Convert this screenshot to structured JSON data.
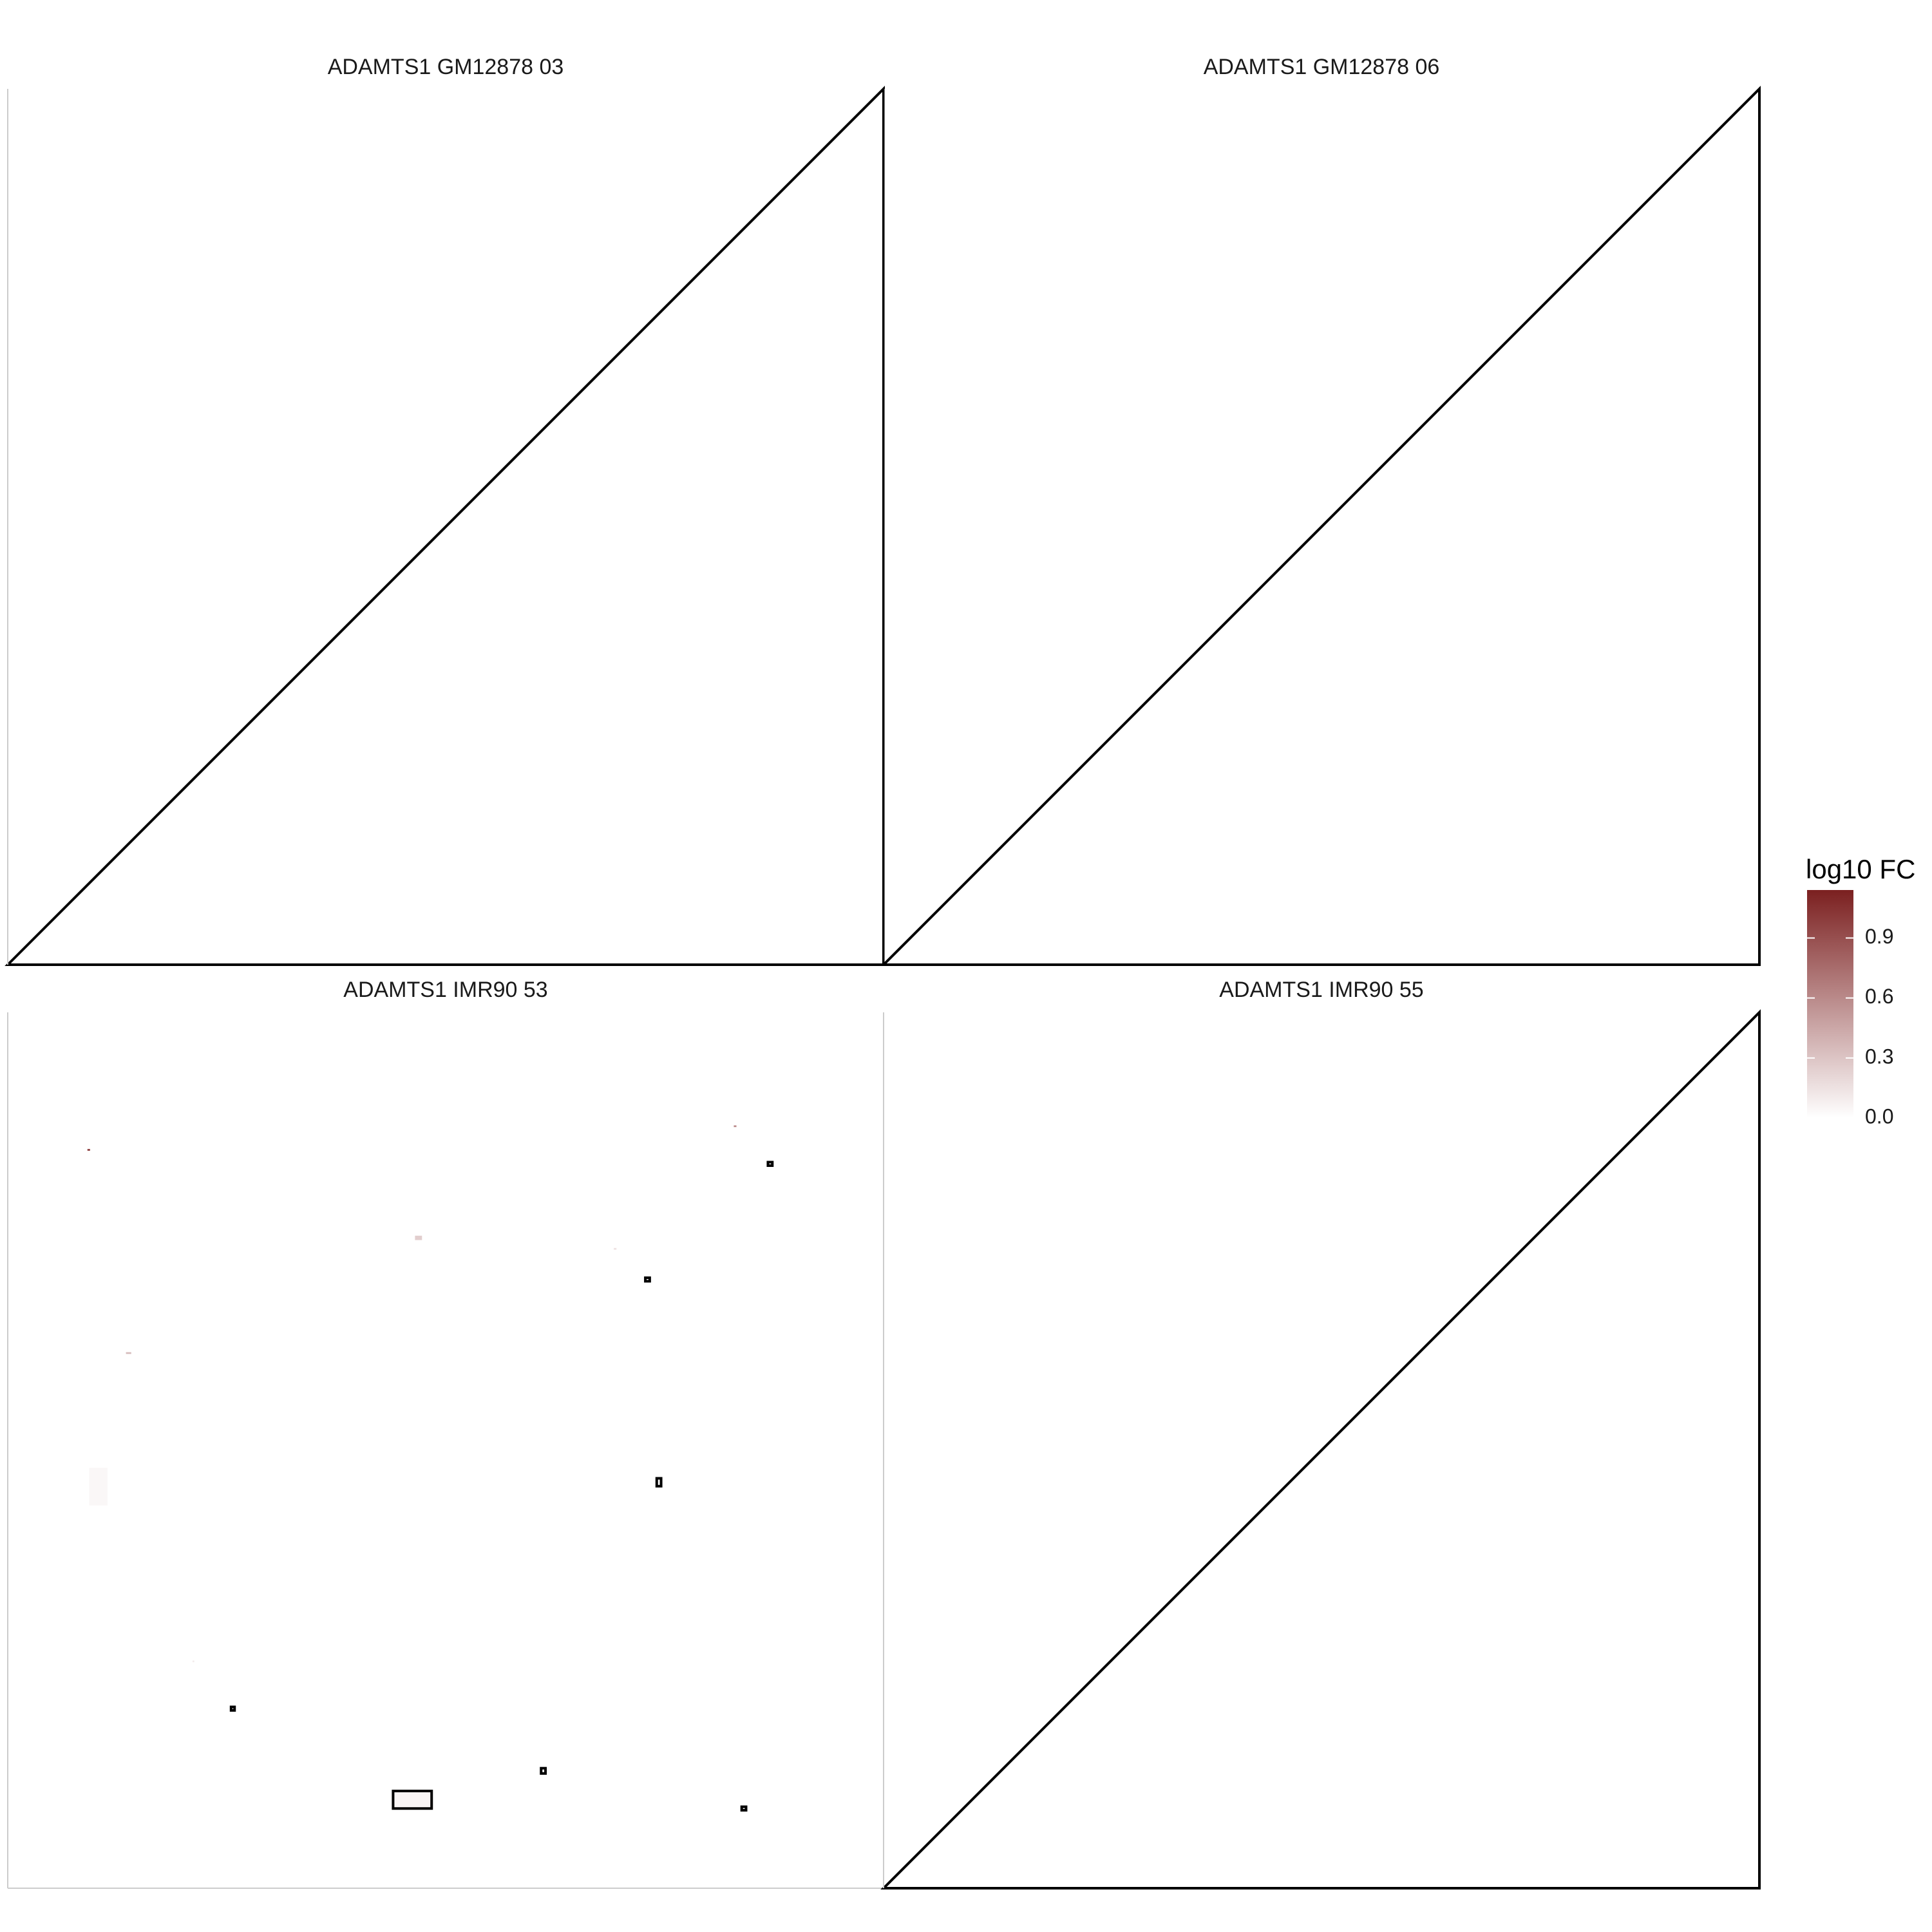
{
  "chart_data": [
    {
      "type": "heatmap",
      "title": "ADAMTS1 GM12878 03",
      "cells": [],
      "outlines": [],
      "triangle": true,
      "border": "left-bottom"
    },
    {
      "type": "heatmap",
      "title": "ADAMTS1 GM12878 06",
      "cells": [],
      "outlines": [],
      "triangle": true,
      "border": "left-bottom"
    },
    {
      "type": "heatmap",
      "title": "ADAMTS1 IMR90 53",
      "triangle": false,
      "border": "none",
      "cells": [
        {
          "x": 0.091,
          "y": 0.156,
          "w": 0.003,
          "h": 0.002,
          "value": 1.0
        },
        {
          "x": 0.829,
          "y": 0.129,
          "w": 0.003,
          "h": 0.002,
          "value": 0.6
        },
        {
          "x": 0.465,
          "y": 0.255,
          "w": 0.008,
          "h": 0.005,
          "value": 0.25
        },
        {
          "x": 0.692,
          "y": 0.269,
          "w": 0.003,
          "h": 0.002,
          "value": 0.15
        },
        {
          "x": 0.135,
          "y": 0.388,
          "w": 0.006,
          "h": 0.002,
          "value": 0.35
        },
        {
          "x": 0.093,
          "y": 0.52,
          "w": 0.021,
          "h": 0.043,
          "value": 0.04
        },
        {
          "x": 0.211,
          "y": 0.74,
          "w": 0.002,
          "h": 0.002,
          "value": 0.1
        },
        {
          "x": 0.44,
          "y": 0.889,
          "w": 0.044,
          "h": 0.02,
          "value": 0.05
        }
      ],
      "outlines": [
        {
          "x": 0.868,
          "y": 0.171,
          "w": 0.005,
          "h": 0.004
        },
        {
          "x": 0.728,
          "y": 0.303,
          "w": 0.005,
          "h": 0.004
        },
        {
          "x": 0.741,
          "y": 0.532,
          "w": 0.005,
          "h": 0.009
        },
        {
          "x": 0.255,
          "y": 0.793,
          "w": 0.004,
          "h": 0.004
        },
        {
          "x": 0.609,
          "y": 0.863,
          "w": 0.005,
          "h": 0.006
        },
        {
          "x": 0.838,
          "y": 0.907,
          "w": 0.005,
          "h": 0.004
        },
        {
          "x": 0.44,
          "y": 0.889,
          "w": 0.044,
          "h": 0.02
        }
      ]
    },
    {
      "type": "heatmap",
      "title": "ADAMTS1 IMR90 55",
      "cells": [],
      "outlines": [],
      "triangle": true,
      "border": "left-bottom"
    }
  ],
  "legend": {
    "title": "log10 FC",
    "min": 0.0,
    "max": 1.14,
    "ticks": [
      {
        "value": 0.0,
        "label": "0.0"
      },
      {
        "value": 0.3,
        "label": "0.3"
      },
      {
        "value": 0.6,
        "label": "0.6"
      },
      {
        "value": 0.9,
        "label": "0.9"
      }
    ],
    "color_low": "#ffffff",
    "color_high": "#7b2020"
  }
}
